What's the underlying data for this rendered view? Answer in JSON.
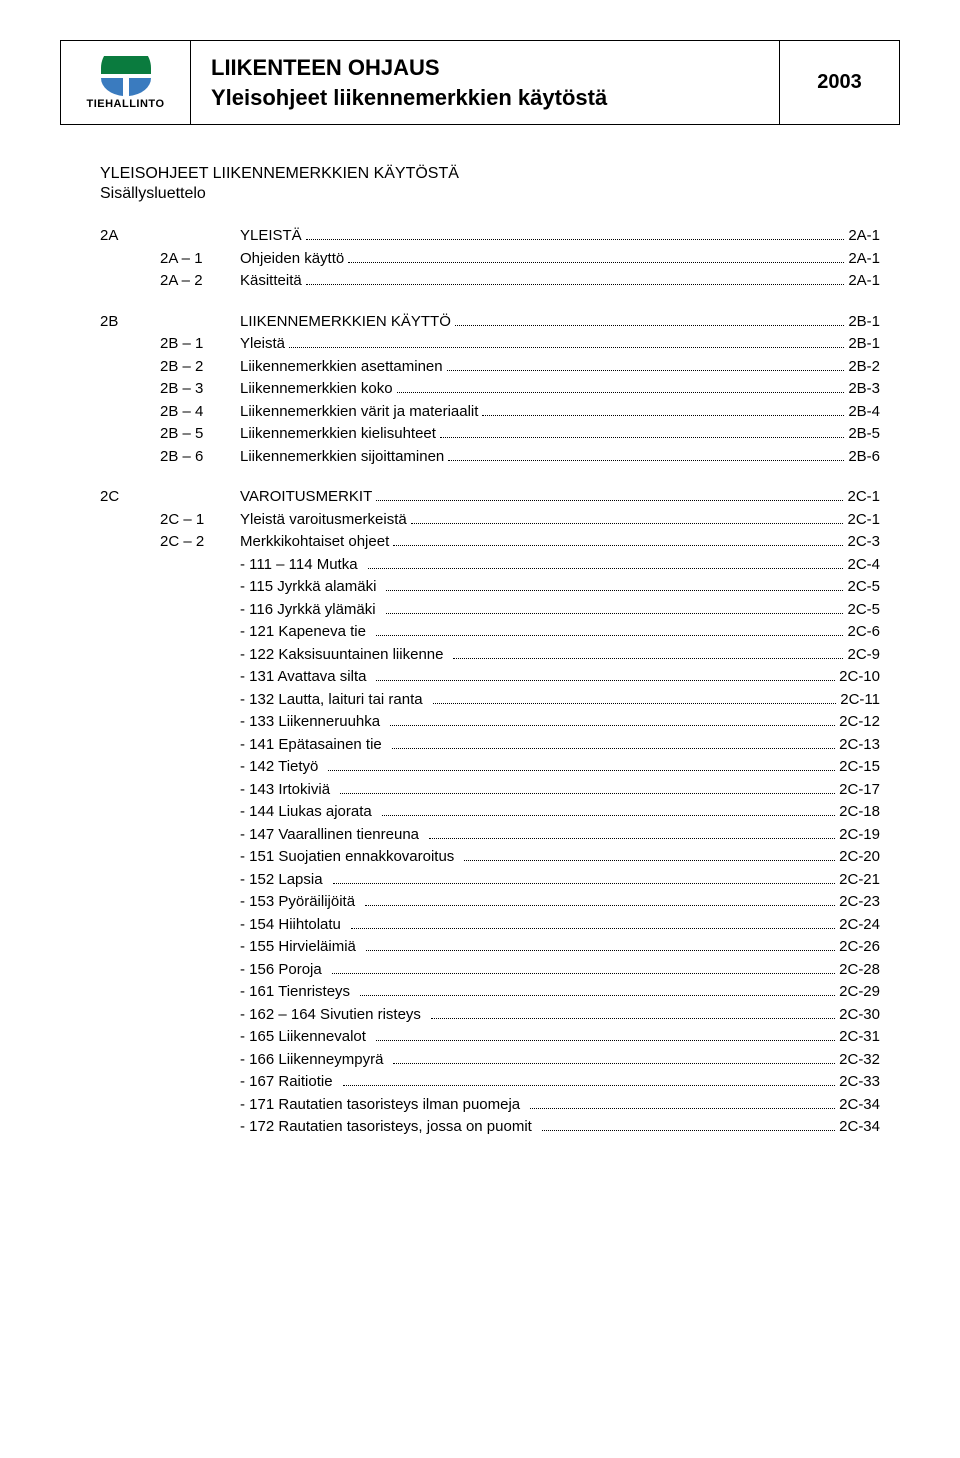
{
  "header": {
    "logo_text": "TIEHALLINTO",
    "title_line1": "LIIKENTEEN OHJAUS",
    "title_line2": "Yleisohjeet liikennemerkkien käytöstä",
    "year": "2003",
    "logo_colors": {
      "top": "#0a7b3e",
      "bottom": "#3a7bbf",
      "border": "#000000"
    }
  },
  "doc": {
    "title": "YLEISOHJEET LIIKENNEMERKKIEN KÄYTÖSTÄ",
    "subtitle": "Sisällysluettelo"
  },
  "sections": [
    {
      "code": "2A",
      "label": "YLEISTÄ",
      "page": "2A-1",
      "items": [
        {
          "sub": "2A – 1",
          "label": "Ohjeiden käyttö",
          "page": "2A-1"
        },
        {
          "sub": "2A – 2",
          "label": "Käsitteitä",
          "page": "2A-1"
        }
      ]
    },
    {
      "code": "2B",
      "label": "LIIKENNEMERKKIEN KÄYTTÖ",
      "page": "2B-1",
      "items": [
        {
          "sub": "2B – 1",
          "label": "Yleistä",
          "page": "2B-1"
        },
        {
          "sub": "2B – 2",
          "label": "Liikennemerkkien asettaminen",
          "page": "2B-2"
        },
        {
          "sub": "2B – 3",
          "label": "Liikennemerkkien koko",
          "page": "2B-3"
        },
        {
          "sub": "2B – 4",
          "label": "Liikennemerkkien värit ja materiaalit",
          "page": "2B-4"
        },
        {
          "sub": "2B – 5",
          "label": "Liikennemerkkien kielisuhteet",
          "page": "2B-5"
        },
        {
          "sub": "2B – 6",
          "label": "Liikennemerkkien sijoittaminen",
          "page": "2B-6"
        }
      ]
    },
    {
      "code": "2C",
      "label": "VAROITUSMERKIT",
      "page": "2C-1",
      "items": [
        {
          "sub": "2C – 1",
          "label": "Yleistä varoitusmerkeistä",
          "page": "2C-1"
        },
        {
          "sub": "2C – 2",
          "label": "Merkkikohtaiset ohjeet",
          "page": "2C-3"
        }
      ],
      "dash_items": [
        {
          "dash": "- 111 – 114",
          "label": "Mutka",
          "page": "2C-4"
        },
        {
          "dash": "- 115",
          "label": "Jyrkkä alamäki",
          "page": "2C-5"
        },
        {
          "dash": "- 116",
          "label": "Jyrkkä ylämäki",
          "page": "2C-5"
        },
        {
          "dash": "- 121",
          "label": "Kapeneva tie",
          "page": "2C-6"
        },
        {
          "dash": "- 122",
          "label": "Kaksisuuntainen liikenne",
          "page": "2C-9"
        },
        {
          "dash": "- 131",
          "label": "Avattava silta",
          "page": "2C-10"
        },
        {
          "dash": "- 132",
          "label": "Lautta, laituri tai ranta",
          "page": "2C-11"
        },
        {
          "dash": "- 133",
          "label": "Liikenneruuhka",
          "page": "2C-12"
        },
        {
          "dash": "- 141",
          "label": "Epätasainen tie",
          "page": "2C-13"
        },
        {
          "dash": "- 142",
          "label": "Tietyö",
          "page": "2C-15"
        },
        {
          "dash": "- 143",
          "label": "Irtokiviä",
          "page": "2C-17"
        },
        {
          "dash": "- 144",
          "label": "Liukas ajorata",
          "page": "2C-18"
        },
        {
          "dash": "- 147",
          "label": "Vaarallinen tienreuna",
          "page": "2C-19"
        },
        {
          "dash": "- 151",
          "label": "Suojatien ennakkovaroitus",
          "page": "2C-20"
        },
        {
          "dash": "- 152",
          "label": "Lapsia",
          "page": "2C-21"
        },
        {
          "dash": "- 153",
          "label": "Pyöräilijöitä",
          "page": "2C-23"
        },
        {
          "dash": "- 154",
          "label": "Hiihtolatu",
          "page": "2C-24"
        },
        {
          "dash": "- 155",
          "label": "Hirvieläimiä",
          "page": "2C-26"
        },
        {
          "dash": "- 156",
          "label": "Poroja",
          "page": "2C-28"
        },
        {
          "dash": "- 161",
          "label": "Tienristeys",
          "page": "2C-29"
        },
        {
          "dash": "- 162 – 164",
          "label": "Sivutien risteys",
          "page": "2C-30"
        },
        {
          "dash": "- 165",
          "label": "Liikennevalot",
          "page": "2C-31"
        },
        {
          "dash": "- 166",
          "label": "Liikenneympyrä",
          "page": "2C-32"
        },
        {
          "dash": "- 167",
          "label": "Raitiotie",
          "page": "2C-33"
        },
        {
          "dash": "- 171",
          "label": "Rautatien tasoristeys ilman puomeja",
          "page": "2C-34"
        },
        {
          "dash": "- 172",
          "label": "Rautatien tasoristeys, jossa on puomit",
          "page": "2C-34"
        }
      ]
    }
  ]
}
